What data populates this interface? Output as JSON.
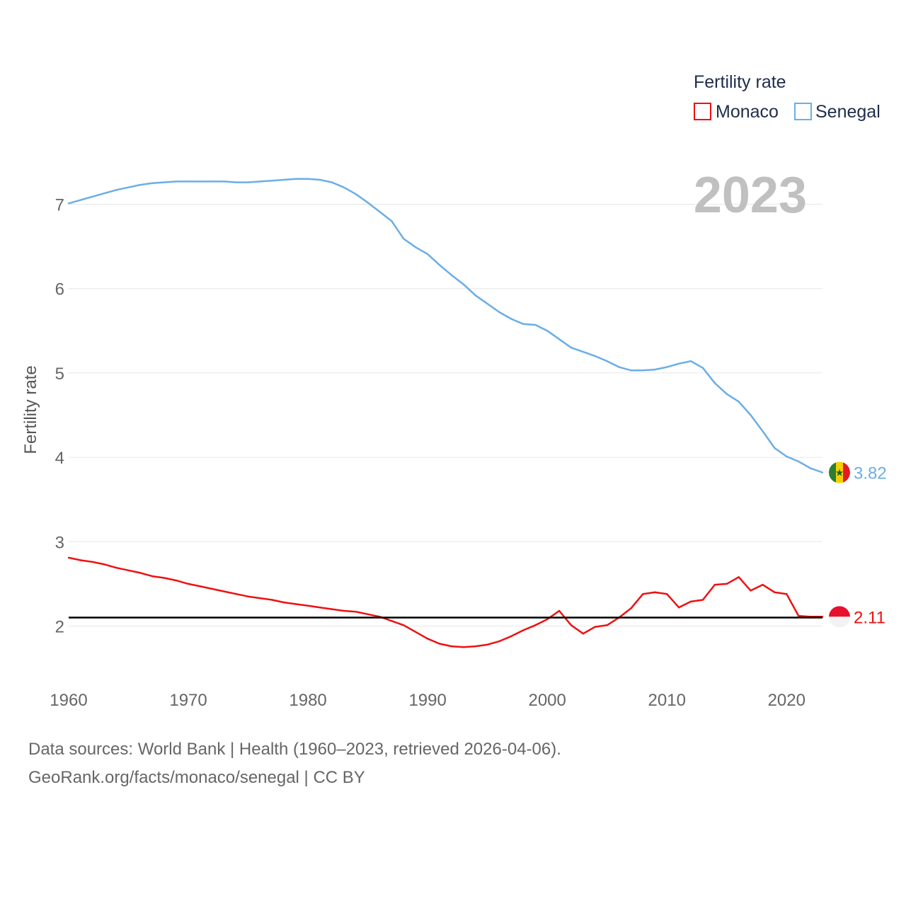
{
  "chart_data": {
    "type": "line",
    "title": "",
    "year_label": "2023",
    "ylabel": "Fertility rate",
    "xlabel": "",
    "xlim": [
      1960,
      2023
    ],
    "ylim": [
      1.45,
      7.55
    ],
    "x_ticks": [
      "1960",
      "1970",
      "1980",
      "1990",
      "2000",
      "2010",
      "2020"
    ],
    "y_ticks": [
      "2",
      "3",
      "4",
      "5",
      "6",
      "7"
    ],
    "reference_line": 2.1,
    "legend": {
      "title": "Fertility rate",
      "position": "top-right"
    },
    "x": [
      1960,
      1961,
      1962,
      1963,
      1964,
      1965,
      1966,
      1967,
      1968,
      1969,
      1970,
      1971,
      1972,
      1973,
      1974,
      1975,
      1976,
      1977,
      1978,
      1979,
      1980,
      1981,
      1982,
      1983,
      1984,
      1985,
      1986,
      1987,
      1988,
      1989,
      1990,
      1991,
      1992,
      1993,
      1994,
      1995,
      1996,
      1997,
      1998,
      1999,
      2000,
      2001,
      2002,
      2003,
      2004,
      2005,
      2006,
      2007,
      2008,
      2009,
      2010,
      2011,
      2012,
      2013,
      2014,
      2015,
      2016,
      2017,
      2018,
      2019,
      2020,
      2021,
      2022,
      2023
    ],
    "series": [
      {
        "name": "Monaco",
        "color": "#ee1111",
        "end_label": "2.11",
        "values": [
          2.81,
          2.78,
          2.76,
          2.73,
          2.69,
          2.66,
          2.63,
          2.59,
          2.57,
          2.54,
          2.5,
          2.47,
          2.44,
          2.41,
          2.38,
          2.35,
          2.33,
          2.31,
          2.28,
          2.26,
          2.24,
          2.22,
          2.2,
          2.18,
          2.17,
          2.14,
          2.11,
          2.06,
          2.01,
          1.93,
          1.85,
          1.79,
          1.76,
          1.75,
          1.76,
          1.78,
          1.82,
          1.88,
          1.95,
          2.01,
          2.08,
          2.18,
          2.01,
          1.91,
          1.99,
          2.01,
          2.1,
          2.21,
          2.38,
          2.4,
          2.38,
          2.22,
          2.29,
          2.31,
          2.49,
          2.5,
          2.58,
          2.42,
          2.49,
          2.4,
          2.38,
          2.12,
          2.11,
          2.11
        ]
      },
      {
        "name": "Senegal",
        "color": "#6aaee8",
        "end_label": "3.82",
        "values": [
          7.01,
          7.05,
          7.09,
          7.13,
          7.17,
          7.2,
          7.23,
          7.25,
          7.26,
          7.27,
          7.27,
          7.27,
          7.27,
          7.27,
          7.26,
          7.26,
          7.27,
          7.28,
          7.29,
          7.3,
          7.3,
          7.29,
          7.26,
          7.2,
          7.12,
          7.02,
          6.91,
          6.8,
          6.59,
          6.49,
          6.41,
          6.28,
          6.16,
          6.05,
          5.92,
          5.82,
          5.72,
          5.64,
          5.58,
          5.57,
          5.5,
          5.4,
          5.3,
          5.25,
          5.2,
          5.14,
          5.07,
          5.03,
          5.03,
          5.04,
          5.07,
          5.11,
          5.14,
          5.06,
          4.88,
          4.75,
          4.66,
          4.5,
          4.31,
          4.11,
          4.01,
          3.95,
          3.87,
          3.82
        ]
      }
    ]
  },
  "footer": {
    "line1": "Data sources: World Bank | Health (1960–2023, retrieved 2026-04-06).",
    "line2": "GeoRank.org/facts/monaco/senegal | CC BY"
  }
}
